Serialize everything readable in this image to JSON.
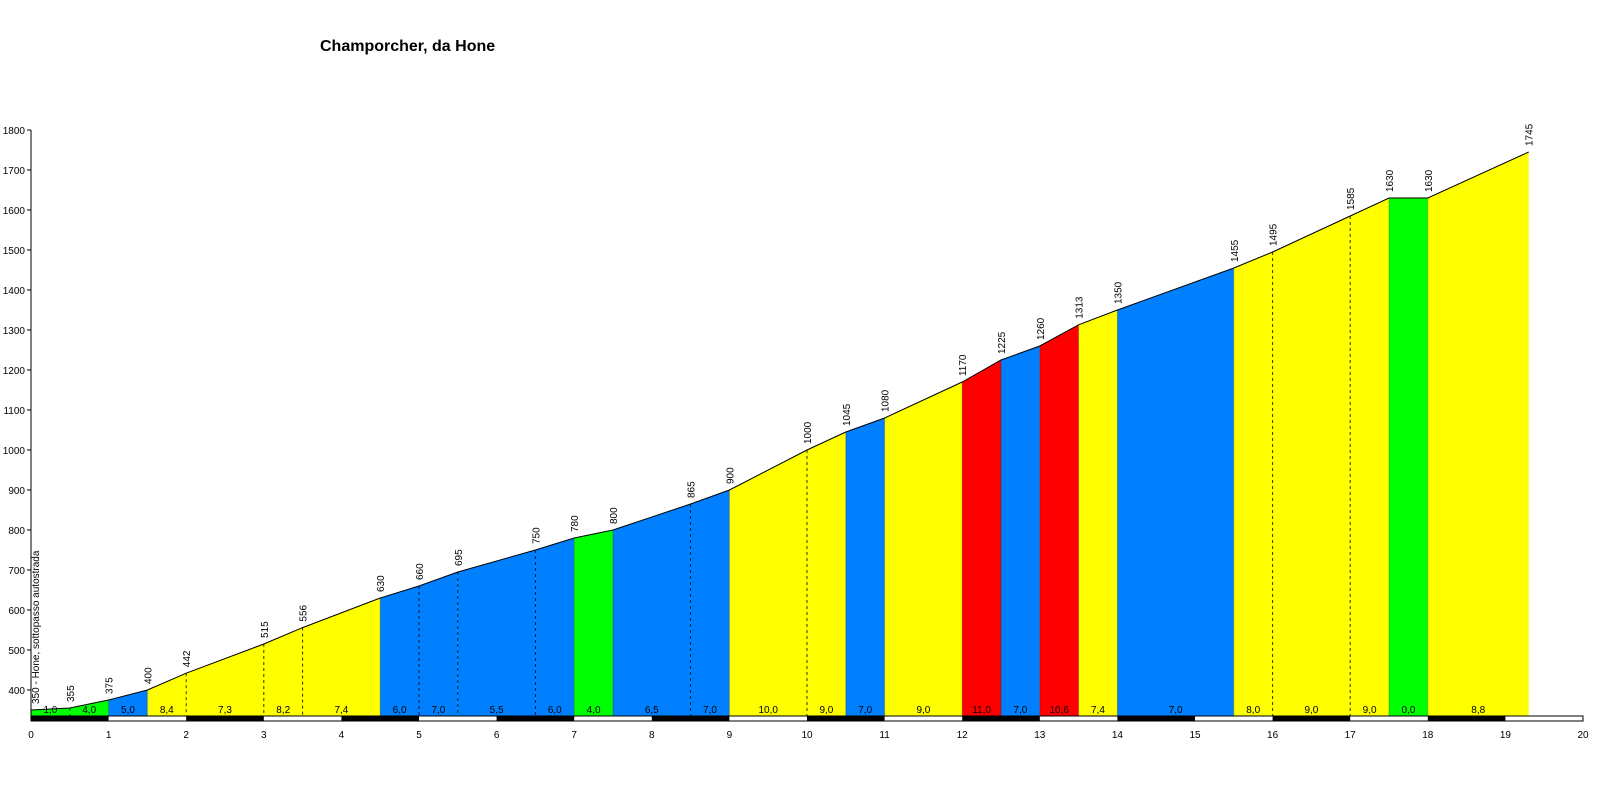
{
  "chart_data": {
    "type": "area",
    "title": "Champorcher, da Hone",
    "xlabel": "",
    "ylabel": "",
    "xlim": [
      0,
      20
    ],
    "ylim": [
      320,
      1800
    ],
    "y_ticks": [
      400,
      500,
      600,
      700,
      800,
      900,
      1000,
      1100,
      1200,
      1300,
      1400,
      1500,
      1600,
      1700,
      1800
    ],
    "x_ticks": [
      0,
      1,
      2,
      3,
      4,
      5,
      6,
      7,
      8,
      9,
      10,
      11,
      12,
      13,
      14,
      15,
      16,
      17,
      18,
      19,
      20
    ],
    "start_label": "350 - Hone, sottopasso autostrada",
    "points": [
      {
        "km": 0,
        "alt": 350,
        "label": ""
      },
      {
        "km": 0.5,
        "alt": 355,
        "label": "355"
      },
      {
        "km": 1,
        "alt": 375,
        "label": "375"
      },
      {
        "km": 1.5,
        "alt": 400,
        "label": "400"
      },
      {
        "km": 2,
        "alt": 442,
        "label": "442"
      },
      {
        "km": 3,
        "alt": 515,
        "label": "515"
      },
      {
        "km": 3.5,
        "alt": 556,
        "label": "556"
      },
      {
        "km": 4.5,
        "alt": 630,
        "label": "630"
      },
      {
        "km": 5,
        "alt": 660,
        "label": "660"
      },
      {
        "km": 5.5,
        "alt": 695,
        "label": "695"
      },
      {
        "km": 6.5,
        "alt": 750,
        "label": "750"
      },
      {
        "km": 7,
        "alt": 780,
        "label": "780"
      },
      {
        "km": 7.5,
        "alt": 800,
        "label": "800"
      },
      {
        "km": 8.5,
        "alt": 865,
        "label": "865"
      },
      {
        "km": 9,
        "alt": 900,
        "label": "900"
      },
      {
        "km": 10,
        "alt": 1000,
        "label": "1000"
      },
      {
        "km": 10.5,
        "alt": 1045,
        "label": "1045"
      },
      {
        "km": 11,
        "alt": 1080,
        "label": "1080"
      },
      {
        "km": 12,
        "alt": 1170,
        "label": "1170"
      },
      {
        "km": 12.5,
        "alt": 1225,
        "label": "1225"
      },
      {
        "km": 13,
        "alt": 1260,
        "label": "1260"
      },
      {
        "km": 13.5,
        "alt": 1313,
        "label": "1313"
      },
      {
        "km": 14,
        "alt": 1350,
        "label": "1350"
      },
      {
        "km": 15.5,
        "alt": 1455,
        "label": "1455"
      },
      {
        "km": 16,
        "alt": 1495,
        "label": "1495"
      },
      {
        "km": 17,
        "alt": 1585,
        "label": "1585"
      },
      {
        "km": 17.5,
        "alt": 1630,
        "label": "1630"
      },
      {
        "km": 18,
        "alt": 1630,
        "label": "1630"
      },
      {
        "km": 19.3,
        "alt": 1745,
        "label": "1745"
      }
    ],
    "segments": [
      {
        "from": 0,
        "to": 0.5,
        "gradient": "1,0",
        "color": "#00ff00"
      },
      {
        "from": 0.5,
        "to": 1,
        "gradient": "4,0",
        "color": "#00ff00"
      },
      {
        "from": 1,
        "to": 1.5,
        "gradient": "5,0",
        "color": "#0080ff"
      },
      {
        "from": 1.5,
        "to": 2,
        "gradient": "8,4",
        "color": "#ffff00"
      },
      {
        "from": 2,
        "to": 3,
        "gradient": "7,3",
        "color": "#ffff00"
      },
      {
        "from": 3,
        "to": 3.5,
        "gradient": "8,2",
        "color": "#ffff00"
      },
      {
        "from": 3.5,
        "to": 4.5,
        "gradient": "7,4",
        "color": "#ffff00"
      },
      {
        "from": 4.5,
        "to": 5,
        "gradient": "6,0",
        "color": "#0080ff"
      },
      {
        "from": 5,
        "to": 5.5,
        "gradient": "7,0",
        "color": "#0080ff"
      },
      {
        "from": 5.5,
        "to": 6.5,
        "gradient": "5,5",
        "color": "#0080ff"
      },
      {
        "from": 6.5,
        "to": 7,
        "gradient": "6,0",
        "color": "#0080ff"
      },
      {
        "from": 7,
        "to": 7.5,
        "gradient": "4,0",
        "color": "#00ff00"
      },
      {
        "from": 7.5,
        "to": 8.5,
        "gradient": "6,5",
        "color": "#0080ff"
      },
      {
        "from": 8.5,
        "to": 9,
        "gradient": "7,0",
        "color": "#0080ff"
      },
      {
        "from": 9,
        "to": 10,
        "gradient": "10,0",
        "color": "#ffff00"
      },
      {
        "from": 10,
        "to": 10.5,
        "gradient": "9,0",
        "color": "#ffff00"
      },
      {
        "from": 10.5,
        "to": 11,
        "gradient": "7,0",
        "color": "#0080ff"
      },
      {
        "from": 11,
        "to": 12,
        "gradient": "9,0",
        "color": "#ffff00"
      },
      {
        "from": 12,
        "to": 12.5,
        "gradient": "11,0",
        "color": "#ff0000"
      },
      {
        "from": 12.5,
        "to": 13,
        "gradient": "7,0",
        "color": "#0080ff"
      },
      {
        "from": 13,
        "to": 13.5,
        "gradient": "10,6",
        "color": "#ff0000"
      },
      {
        "from": 13.5,
        "to": 14,
        "gradient": "7,4",
        "color": "#ffff00"
      },
      {
        "from": 14,
        "to": 15.5,
        "gradient": "7,0",
        "color": "#0080ff"
      },
      {
        "from": 15.5,
        "to": 16,
        "gradient": "8,0",
        "color": "#ffff00"
      },
      {
        "from": 16,
        "to": 17,
        "gradient": "9,0",
        "color": "#ffff00"
      },
      {
        "from": 17,
        "to": 17.5,
        "gradient": "9,0",
        "color": "#ffff00"
      },
      {
        "from": 17.5,
        "to": 18,
        "gradient": "0,0",
        "color": "#00ff00"
      },
      {
        "from": 18,
        "to": 19.3,
        "gradient": "8,8",
        "color": "#ffff00"
      }
    ],
    "grid": false,
    "legend": "none"
  }
}
